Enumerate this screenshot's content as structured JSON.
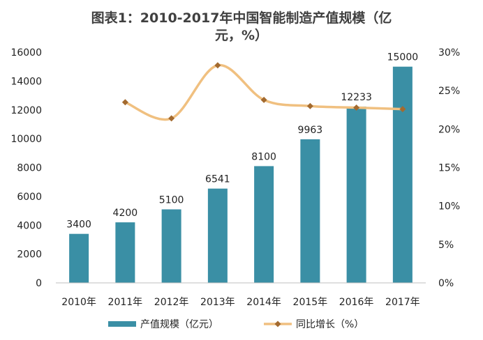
{
  "chart_data": {
    "type": "bar+line",
    "title": "图表1：2010-2017年中国智能制造产值规模（亿元，%）",
    "categories": [
      "2010年",
      "2011年",
      "2012年",
      "2013年",
      "2014年",
      "2015年",
      "2016年",
      "2017年"
    ],
    "series": [
      {
        "name": "产值规模（亿元）",
        "type": "bar",
        "axis": "left",
        "values": [
          3400,
          4200,
          5100,
          6541,
          8100,
          9963,
          12233,
          15000
        ],
        "data_labels": [
          "3400",
          "4200",
          "5100",
          "6541",
          "8100",
          "9963",
          "12233",
          "15000"
        ],
        "color": "#3A8FA5"
      },
      {
        "name": "同比增长（%）",
        "type": "line",
        "axis": "right",
        "values": [
          null,
          23.5,
          21.4,
          28.3,
          23.8,
          23.0,
          22.8,
          22.6
        ],
        "color": "#F0C080",
        "marker_color": "#A36A2F"
      }
    ],
    "y_left": {
      "ylim": [
        0,
        16000
      ],
      "ticks": [
        "0",
        "2000",
        "4000",
        "6000",
        "8000",
        "10000",
        "12000",
        "14000",
        "16000"
      ]
    },
    "y_right": {
      "ylim": [
        0,
        30
      ],
      "ticks": [
        "0%",
        "5%",
        "10%",
        "15%",
        "20%",
        "25%",
        "30%"
      ]
    },
    "legend_position": "bottom",
    "grid": false
  }
}
